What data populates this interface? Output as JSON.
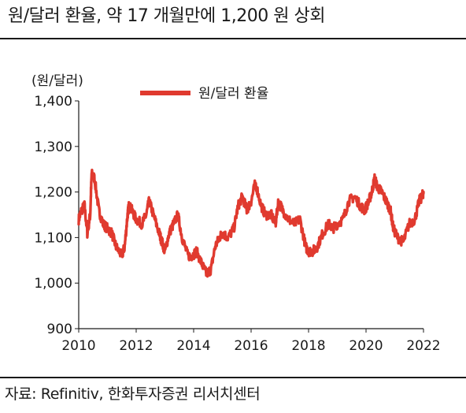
{
  "header": {
    "title": "원/달러 환율, 약 17 개월만에 1,200 원 상회"
  },
  "footer": {
    "source": "자료: Refinitiv, 한화투자증권 리서치센터"
  },
  "colors": {
    "series": "#e03a2f",
    "axis": "#1a1a1a"
  },
  "chart_data": {
    "type": "line",
    "ylabel": "(원/달러)",
    "xlabel": "",
    "xlim": [
      2010,
      2022
    ],
    "ylim": [
      900,
      1400
    ],
    "x_ticks": [
      "2010",
      "2012",
      "2014",
      "2016",
      "2018",
      "2020",
      "2022"
    ],
    "y_ticks": [
      "900",
      "1,000",
      "1,100",
      "1,200",
      "1,300",
      "1,400"
    ],
    "legend_position": "top",
    "grid": false,
    "series": [
      {
        "name": "원/달러 환율",
        "x": [
          2010.0,
          2010.1,
          2010.2,
          2010.3,
          2010.4,
          2010.45,
          2010.55,
          2010.7,
          2010.85,
          2011.0,
          2011.15,
          2011.3,
          2011.5,
          2011.6,
          2011.7,
          2011.75,
          2011.85,
          2012.0,
          2012.2,
          2012.35,
          2012.45,
          2012.6,
          2012.8,
          2012.9,
          2013.0,
          2013.15,
          2013.3,
          2013.45,
          2013.6,
          2013.8,
          2013.95,
          2014.1,
          2014.3,
          2014.45,
          2014.6,
          2014.75,
          2014.9,
          2015.0,
          2015.2,
          2015.4,
          2015.55,
          2015.7,
          2015.85,
          2016.0,
          2016.15,
          2016.35,
          2016.5,
          2016.7,
          2016.85,
          2016.95,
          2017.1,
          2017.3,
          2017.5,
          2017.7,
          2017.9,
          2018.0,
          2018.15,
          2018.3,
          2018.5,
          2018.7,
          2018.85,
          2019.0,
          2019.2,
          2019.4,
          2019.6,
          2019.8,
          2019.95,
          2020.1,
          2020.2,
          2020.3,
          2020.4,
          2020.55,
          2020.7,
          2020.85,
          2020.95,
          2021.1,
          2021.3,
          2021.5,
          2021.7,
          2021.85,
          2021.95,
          2022.0
        ],
        "values": [
          1140,
          1160,
          1170,
          1110,
          1150,
          1240,
          1230,
          1160,
          1130,
          1120,
          1110,
          1080,
          1060,
          1080,
          1150,
          1170,
          1160,
          1140,
          1130,
          1150,
          1180,
          1150,
          1110,
          1090,
          1070,
          1110,
          1130,
          1150,
          1100,
          1060,
          1060,
          1070,
          1040,
          1020,
          1030,
          1080,
          1100,
          1110,
          1100,
          1120,
          1170,
          1190,
          1160,
          1180,
          1220,
          1170,
          1150,
          1150,
          1130,
          1180,
          1160,
          1140,
          1130,
          1140,
          1080,
          1070,
          1070,
          1080,
          1110,
          1130,
          1120,
          1130,
          1140,
          1180,
          1190,
          1170,
          1160,
          1180,
          1200,
          1230,
          1210,
          1200,
          1180,
          1160,
          1120,
          1100,
          1090,
          1130,
          1140,
          1180,
          1190,
          1200
        ]
      }
    ]
  }
}
